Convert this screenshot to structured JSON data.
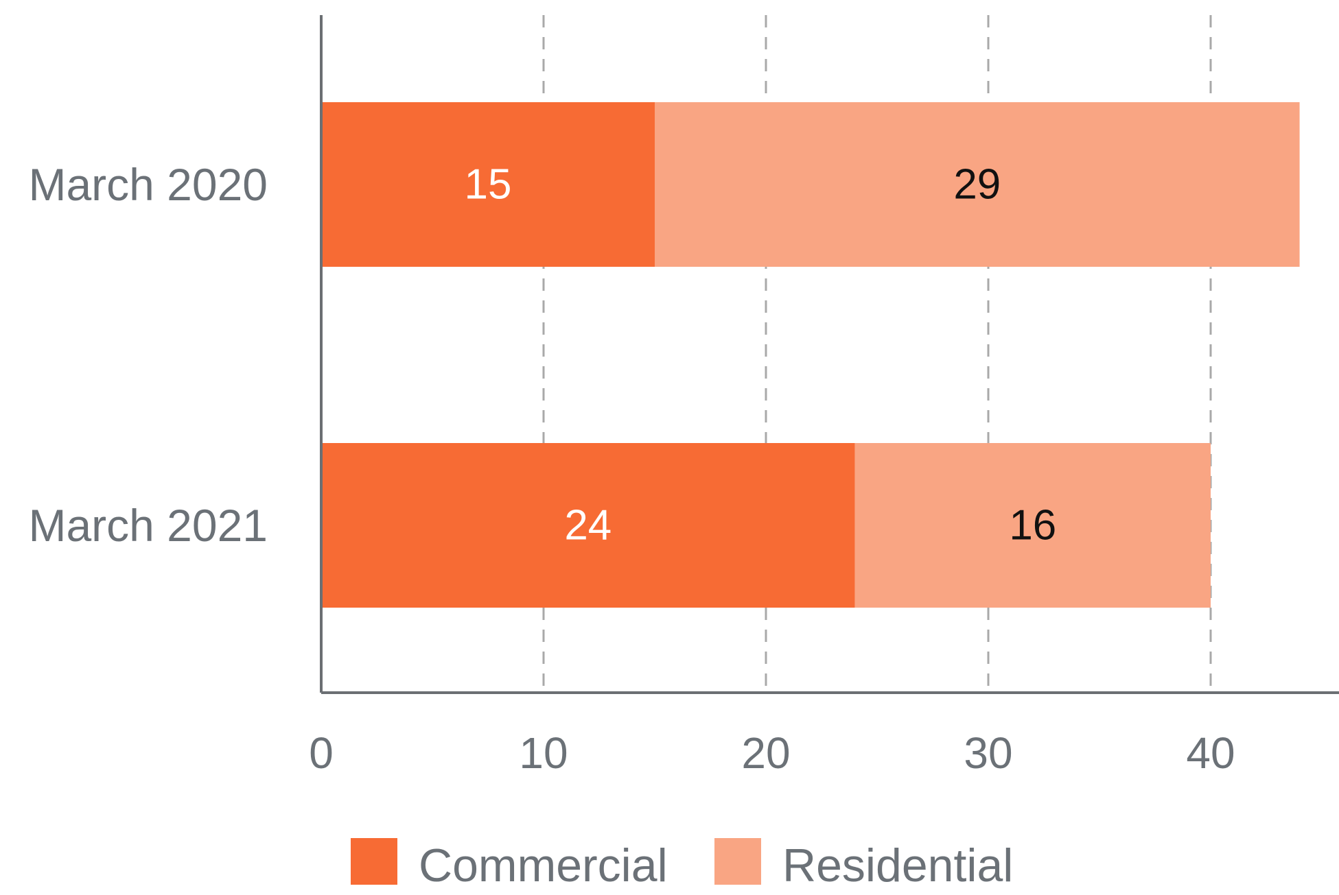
{
  "chart_data": {
    "type": "bar",
    "orientation": "horizontal",
    "stacked": true,
    "categories": [
      "March 2020",
      "March 2021"
    ],
    "series": [
      {
        "name": "Commercial",
        "values": [
          15,
          24
        ],
        "color": "#f76b34",
        "label_color": "#ffffff"
      },
      {
        "name": "Residential",
        "values": [
          29,
          16
        ],
        "color": "#f9a583",
        "label_color": "#111111"
      }
    ],
    "x_ticks": [
      "0",
      "10",
      "20",
      "30",
      "40"
    ],
    "xlim": [
      0,
      45
    ],
    "grid": "vertical-dashed",
    "legend_position": "bottom"
  }
}
